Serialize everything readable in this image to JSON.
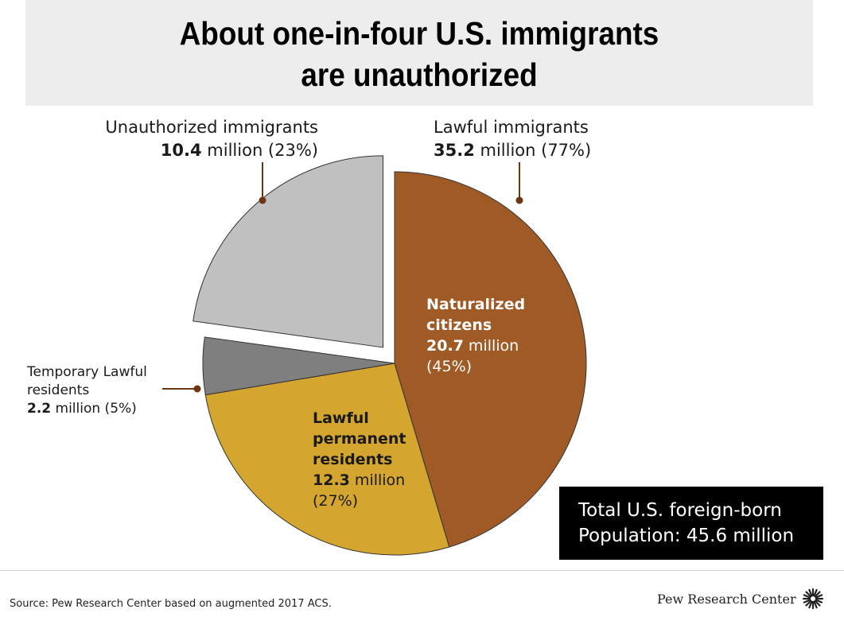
{
  "title": {
    "line1": "About one-in-four U.S. immigrants",
    "line2": "are unauthorized"
  },
  "chart_data": {
    "type": "pie",
    "slices": [
      {
        "label": "Naturalized citizens",
        "value": 20.7,
        "percent": 45,
        "unit": "million",
        "color": "#a05a26",
        "group": "Lawful immigrants"
      },
      {
        "label": "Lawful permanent residents",
        "value": 12.3,
        "percent": 27,
        "unit": "million",
        "color": "#d4a52f",
        "group": "Lawful immigrants"
      },
      {
        "label": "Temporary Lawful residents",
        "value": 2.2,
        "percent": 5,
        "unit": "million",
        "color": "#7f7f7f",
        "group": "Lawful immigrants"
      },
      {
        "label": "Unauthorized immigrants",
        "value": 10.4,
        "percent": 23,
        "unit": "million",
        "color": "#c0c0c0",
        "exploded": true
      }
    ],
    "groups": [
      {
        "label": "Lawful immigrants",
        "value": 35.2,
        "percent": 77
      },
      {
        "label": "Unauthorized immigrants",
        "value": 10.4,
        "percent": 23
      }
    ]
  },
  "labels": {
    "unauth": {
      "name": "Unauthorized immigrants",
      "value": "10.4",
      "rest": " million (23%)"
    },
    "lawful": {
      "name": "Lawful immigrants",
      "value": "35.2",
      "rest": " million (77%)"
    },
    "temp": {
      "name1": "Temporary Lawful",
      "name2": "residents",
      "value": "2.2",
      "rest": " million (5%)"
    },
    "nat": {
      "name1": "Naturalized",
      "name2": "citizens",
      "value": "20.7",
      "rest": " million",
      "pct": "(45%)"
    },
    "lpr": {
      "name1": "Lawful",
      "name2": "permanent",
      "name3": "residents",
      "value": "12.3",
      "rest": " million",
      "pct": "(27%)"
    }
  },
  "total": {
    "line1": "Total U.S. foreign-born",
    "line2": "Population: 45.6 million"
  },
  "source": "Source: Pew Research Center based on augmented 2017 ACS.",
  "brand": "Pew Research Center",
  "colors": {
    "leader": "#6b3612"
  }
}
